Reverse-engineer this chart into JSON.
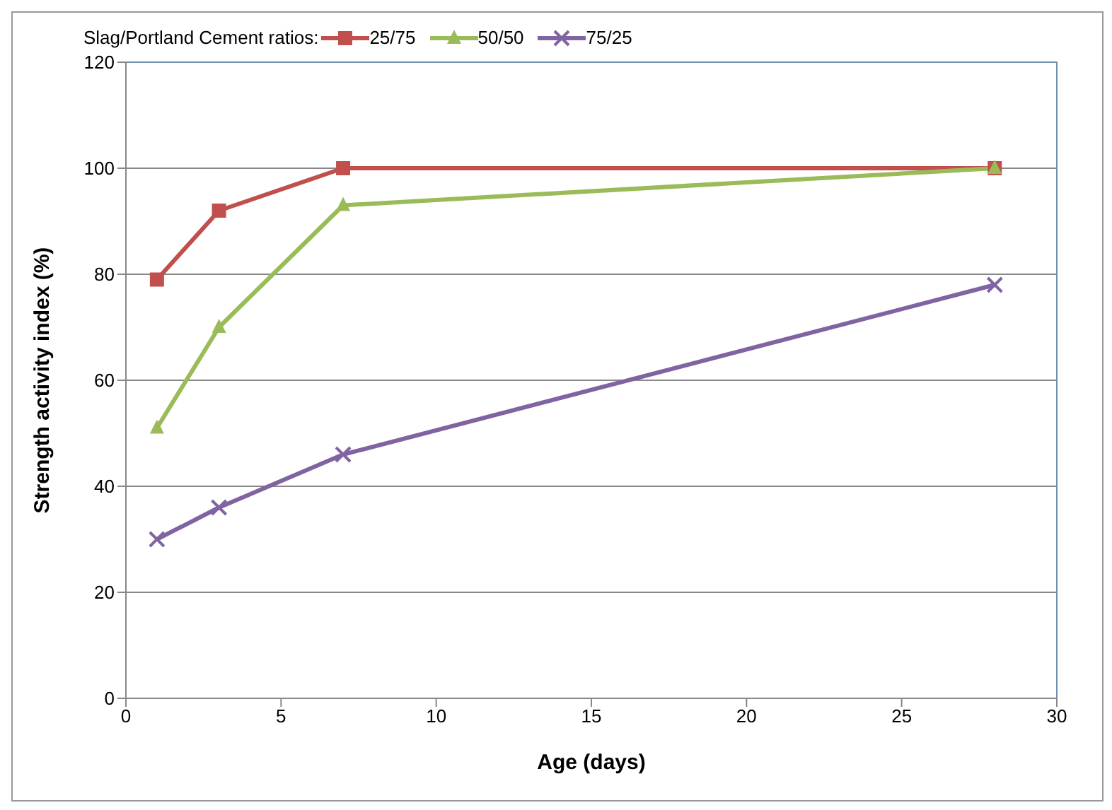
{
  "chart_data": {
    "type": "line",
    "xlabel": "Age (days)",
    "ylabel": "Strength activity index  (%)",
    "legend_title": "Slag/Portland Cement ratios:",
    "x": [
      1,
      3,
      7,
      28
    ],
    "series": [
      {
        "name": "25/75",
        "color": "#c0504d",
        "marker": "square",
        "values": [
          79,
          92,
          100,
          100
        ]
      },
      {
        "name": "50/50",
        "color": "#9bbb59",
        "marker": "triangle",
        "values": [
          51,
          70,
          93,
          100
        ]
      },
      {
        "name": "75/25",
        "color": "#8064a2",
        "marker": "cross",
        "values": [
          30,
          36,
          46,
          78
        ]
      }
    ],
    "xlim": [
      0,
      30
    ],
    "xticks": [
      0,
      5,
      10,
      15,
      20,
      25,
      30
    ],
    "ylim": [
      0,
      120
    ],
    "yticks": [
      0,
      20,
      40,
      60,
      80,
      100,
      120
    ],
    "grid": "y",
    "legend": "top",
    "line_style": "solid"
  }
}
